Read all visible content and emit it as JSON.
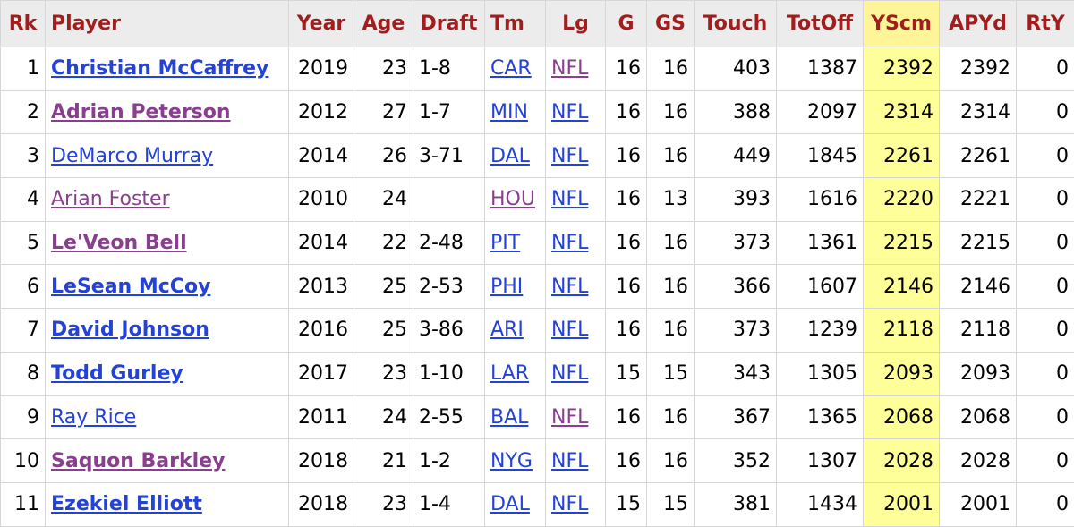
{
  "colors": {
    "header_text": "#a21d1d",
    "link": "#2542d6",
    "visited_link": "#8a3f8e",
    "highlight": "#ffff99"
  },
  "columns": [
    "Rk",
    "Player",
    "Year",
    "Age",
    "Draft",
    "Tm",
    "Lg",
    "G",
    "GS",
    "Touch",
    "TotOff",
    "YScm",
    "APYd",
    "RtY"
  ],
  "rows": [
    {
      "rk": "1",
      "player": "Christian McCaffrey",
      "year": "2019",
      "age": "23",
      "draft": "1-8",
      "tm": "CAR",
      "lg": "NFL",
      "g": "16",
      "gs": "16",
      "touch": "403",
      "totoff": "1387",
      "yscm": "2392",
      "apyd": "2392",
      "rty": "0"
    },
    {
      "rk": "2",
      "player": "Adrian Peterson",
      "year": "2012",
      "age": "27",
      "draft": "1-7",
      "tm": "MIN",
      "lg": "NFL",
      "g": "16",
      "gs": "16",
      "touch": "388",
      "totoff": "2097",
      "yscm": "2314",
      "apyd": "2314",
      "rty": "0"
    },
    {
      "rk": "3",
      "player": "DeMarco Murray",
      "year": "2014",
      "age": "26",
      "draft": "3-71",
      "tm": "DAL",
      "lg": "NFL",
      "g": "16",
      "gs": "16",
      "touch": "449",
      "totoff": "1845",
      "yscm": "2261",
      "apyd": "2261",
      "rty": "0"
    },
    {
      "rk": "4",
      "player": "Arian Foster",
      "year": "2010",
      "age": "24",
      "draft": "",
      "tm": "HOU",
      "lg": "NFL",
      "g": "16",
      "gs": "13",
      "touch": "393",
      "totoff": "1616",
      "yscm": "2220",
      "apyd": "2221",
      "rty": "0"
    },
    {
      "rk": "5",
      "player": "Le'Veon Bell",
      "year": "2014",
      "age": "22",
      "draft": "2-48",
      "tm": "PIT",
      "lg": "NFL",
      "g": "16",
      "gs": "16",
      "touch": "373",
      "totoff": "1361",
      "yscm": "2215",
      "apyd": "2215",
      "rty": "0"
    },
    {
      "rk": "6",
      "player": "LeSean McCoy",
      "year": "2013",
      "age": "25",
      "draft": "2-53",
      "tm": "PHI",
      "lg": "NFL",
      "g": "16",
      "gs": "16",
      "touch": "366",
      "totoff": "1607",
      "yscm": "2146",
      "apyd": "2146",
      "rty": "0"
    },
    {
      "rk": "7",
      "player": "David Johnson",
      "year": "2016",
      "age": "25",
      "draft": "3-86",
      "tm": "ARI",
      "lg": "NFL",
      "g": "16",
      "gs": "16",
      "touch": "373",
      "totoff": "1239",
      "yscm": "2118",
      "apyd": "2118",
      "rty": "0"
    },
    {
      "rk": "8",
      "player": "Todd Gurley",
      "year": "2017",
      "age": "23",
      "draft": "1-10",
      "tm": "LAR",
      "lg": "NFL",
      "g": "15",
      "gs": "15",
      "touch": "343",
      "totoff": "1305",
      "yscm": "2093",
      "apyd": "2093",
      "rty": "0"
    },
    {
      "rk": "9",
      "player": "Ray Rice",
      "year": "2011",
      "age": "24",
      "draft": "2-55",
      "tm": "BAL",
      "lg": "NFL",
      "g": "16",
      "gs": "16",
      "touch": "367",
      "totoff": "1365",
      "yscm": "2068",
      "apyd": "2068",
      "rty": "0"
    },
    {
      "rk": "10",
      "player": "Saquon Barkley",
      "year": "2018",
      "age": "21",
      "draft": "1-2",
      "tm": "NYG",
      "lg": "NFL",
      "g": "16",
      "gs": "16",
      "touch": "352",
      "totoff": "1307",
      "yscm": "2028",
      "apyd": "2028",
      "rty": "0"
    },
    {
      "rk": "11",
      "player": "Ezekiel Elliott",
      "year": "2018",
      "age": "23",
      "draft": "1-4",
      "tm": "DAL",
      "lg": "NFL",
      "g": "15",
      "gs": "15",
      "touch": "381",
      "totoff": "1434",
      "yscm": "2001",
      "apyd": "2001",
      "rty": "0"
    }
  ]
}
